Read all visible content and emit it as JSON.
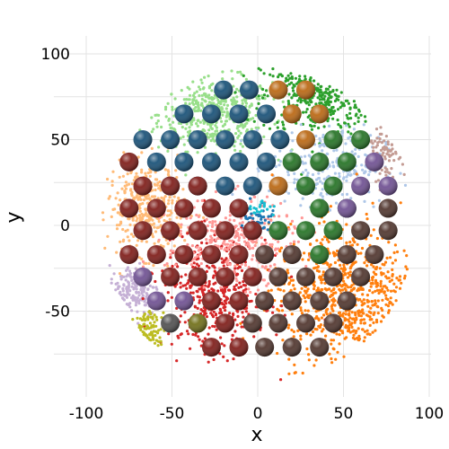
{
  "chart_data": {
    "type": "scatter",
    "title": "",
    "xlabel": "x",
    "ylabel": "y",
    "xlim": [
      -100,
      100
    ],
    "ylim": [
      -100,
      100
    ],
    "xticks": [
      -100,
      -50,
      0,
      50,
      100
    ],
    "yticks": [
      -50,
      0,
      50,
      100
    ],
    "xtick_labels": [
      "-100",
      "-50",
      "0",
      "50",
      "100"
    ],
    "ytick_labels": [
      "-50",
      "0",
      "50",
      "100"
    ],
    "grid": true,
    "legend": "none",
    "point_clusters": [
      {
        "color": "#98df8a",
        "center": [
          -25,
          65
        ],
        "spread": [
          22,
          14
        ],
        "count": 500
      },
      {
        "color": "#2ca02c",
        "center": [
          35,
          75
        ],
        "spread": [
          22,
          15
        ],
        "count": 450
      },
      {
        "color": "#ffbb78",
        "center": [
          -65,
          10
        ],
        "spread": [
          15,
          18
        ],
        "count": 420
      },
      {
        "color": "#aec7e8",
        "center": [
          40,
          35
        ],
        "spread": [
          22,
          15
        ],
        "count": 280
      },
      {
        "color": "#c5b0d5",
        "center": [
          -72,
          -38
        ],
        "spread": [
          10,
          10
        ],
        "count": 180
      },
      {
        "color": "#c49c94",
        "center": [
          75,
          45
        ],
        "spread": [
          8,
          12
        ],
        "count": 110
      },
      {
        "color": "#ff7f0e",
        "center": [
          50,
          -40
        ],
        "spread": [
          28,
          26
        ],
        "count": 900
      },
      {
        "color": "#d62728",
        "center": [
          -25,
          -40
        ],
        "spread": [
          20,
          22
        ],
        "count": 500
      },
      {
        "color": "#ff9896",
        "center": [
          -15,
          -10
        ],
        "spread": [
          25,
          16
        ],
        "count": 350
      },
      {
        "color": "#bcbd22",
        "center": [
          -63,
          -62
        ],
        "spread": [
          6,
          8
        ],
        "count": 120
      },
      {
        "color": "#1f77b4",
        "center": [
          0,
          5
        ],
        "spread": [
          7,
          6
        ],
        "count": 45
      },
      {
        "color": "#17becf",
        "center": [
          2,
          10
        ],
        "spread": [
          5,
          4
        ],
        "count": 20
      }
    ],
    "balls": [
      {
        "color": "#0f4a72",
        "points": [
          [
            -20,
            79
          ],
          [
            -5,
            79
          ],
          [
            -43,
            65
          ],
          [
            -27,
            65
          ],
          [
            -11,
            65
          ],
          [
            5,
            65
          ],
          [
            -67,
            50
          ],
          [
            -51,
            50
          ],
          [
            -35,
            50
          ],
          [
            -19,
            50
          ],
          [
            -3,
            50
          ],
          [
            13,
            50
          ],
          [
            -59,
            37
          ],
          [
            -43,
            37
          ],
          [
            -27,
            37
          ],
          [
            -11,
            37
          ],
          [
            5,
            37
          ],
          [
            -51,
            23
          ],
          [
            -35,
            23
          ],
          [
            -19,
            23
          ],
          [
            -3,
            23
          ]
        ]
      },
      {
        "color": "#b8620a",
        "points": [
          [
            12,
            79
          ],
          [
            28,
            79
          ],
          [
            20,
            65
          ],
          [
            36,
            65
          ],
          [
            28,
            50
          ],
          [
            12,
            23
          ]
        ]
      },
      {
        "color": "#1d6e1d",
        "points": [
          [
            44,
            50
          ],
          [
            60,
            50
          ],
          [
            20,
            37
          ],
          [
            36,
            37
          ],
          [
            52,
            37
          ],
          [
            28,
            23
          ],
          [
            44,
            23
          ],
          [
            36,
            10
          ],
          [
            52,
            10
          ],
          [
            12,
            -3
          ],
          [
            28,
            -3
          ],
          [
            44,
            -3
          ],
          [
            36,
            -17
          ]
        ]
      },
      {
        "color": "#6a4a8e",
        "points": [
          [
            68,
            37
          ],
          [
            60,
            23
          ],
          [
            76,
            23
          ],
          [
            52,
            10
          ],
          [
            -67,
            -30
          ],
          [
            -59,
            -44
          ],
          [
            -43,
            -44
          ]
        ]
      },
      {
        "color": "#7a1410",
        "points": [
          [
            -75,
            37
          ],
          [
            -67,
            23
          ],
          [
            -51,
            23
          ],
          [
            -35,
            23
          ],
          [
            -75,
            10
          ],
          [
            -59,
            10
          ],
          [
            -43,
            10
          ],
          [
            -27,
            10
          ],
          [
            -11,
            10
          ],
          [
            -67,
            -3
          ],
          [
            -51,
            -3
          ],
          [
            -35,
            -3
          ],
          [
            -19,
            -3
          ],
          [
            -3,
            -3
          ],
          [
            -75,
            -17
          ],
          [
            -59,
            -17
          ],
          [
            -43,
            -17
          ],
          [
            -27,
            -17
          ],
          [
            -11,
            -17
          ],
          [
            -51,
            -30
          ],
          [
            -35,
            -30
          ],
          [
            -19,
            -30
          ],
          [
            -3,
            -30
          ],
          [
            -27,
            -44
          ],
          [
            -11,
            -44
          ],
          [
            -35,
            -57
          ],
          [
            -19,
            -57
          ],
          [
            -27,
            -71
          ],
          [
            -11,
            -71
          ]
        ]
      },
      {
        "color": "#4a2e26",
        "points": [
          [
            76,
            10
          ],
          [
            60,
            -3
          ],
          [
            76,
            -3
          ],
          [
            4,
            -17
          ],
          [
            20,
            -17
          ],
          [
            52,
            -17
          ],
          [
            68,
            -17
          ],
          [
            12,
            -30
          ],
          [
            28,
            -30
          ],
          [
            44,
            -30
          ],
          [
            60,
            -30
          ],
          [
            4,
            -44
          ],
          [
            20,
            -44
          ],
          [
            36,
            -44
          ],
          [
            52,
            -44
          ],
          [
            -3,
            -57
          ],
          [
            12,
            -57
          ],
          [
            28,
            -57
          ],
          [
            44,
            -57
          ],
          [
            4,
            -71
          ],
          [
            20,
            -71
          ],
          [
            36,
            -71
          ]
        ]
      },
      {
        "color": "#4a4a4a",
        "points": [
          [
            -51,
            -57
          ]
        ]
      },
      {
        "color": "#6b6a10",
        "points": [
          [
            -35,
            -57
          ]
        ]
      }
    ]
  }
}
